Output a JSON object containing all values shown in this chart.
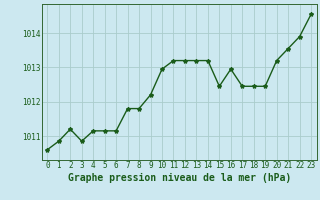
{
  "x": [
    0,
    1,
    2,
    3,
    4,
    5,
    6,
    7,
    8,
    9,
    10,
    11,
    12,
    13,
    14,
    15,
    16,
    17,
    18,
    19,
    20,
    21,
    22,
    23
  ],
  "y": [
    1010.6,
    1010.85,
    1011.2,
    1010.85,
    1011.15,
    1011.15,
    1011.15,
    1011.8,
    1011.8,
    1012.2,
    1012.95,
    1013.2,
    1013.2,
    1013.2,
    1013.2,
    1012.45,
    1012.95,
    1012.45,
    1012.45,
    1012.45,
    1013.2,
    1013.55,
    1013.9,
    1014.55
  ],
  "line_color": "#1a5c1a",
  "marker": "*",
  "marker_size": 3,
  "bg_color": "#cce8f0",
  "grid_color": "#aacccc",
  "xlabel": "Graphe pression niveau de la mer (hPa)",
  "xlabel_color": "#1a5c1a",
  "xlabel_fontsize": 7,
  "tick_color": "#1a5c1a",
  "tick_fontsize": 5.5,
  "ylim": [
    1010.3,
    1014.85
  ],
  "yticks": [
    1011,
    1012,
    1013,
    1014
  ],
  "xticks": [
    0,
    1,
    2,
    3,
    4,
    5,
    6,
    7,
    8,
    9,
    10,
    11,
    12,
    13,
    14,
    15,
    16,
    17,
    18,
    19,
    20,
    21,
    22,
    23
  ],
  "xtick_labels": [
    "0",
    "1",
    "2",
    "3",
    "4",
    "5",
    "6",
    "7",
    "8",
    "9",
    "10",
    "11",
    "12",
    "13",
    "14",
    "15",
    "16",
    "17",
    "18",
    "19",
    "20",
    "21",
    "22",
    "23"
  ],
  "spine_color": "#336633",
  "line_width": 1.0
}
